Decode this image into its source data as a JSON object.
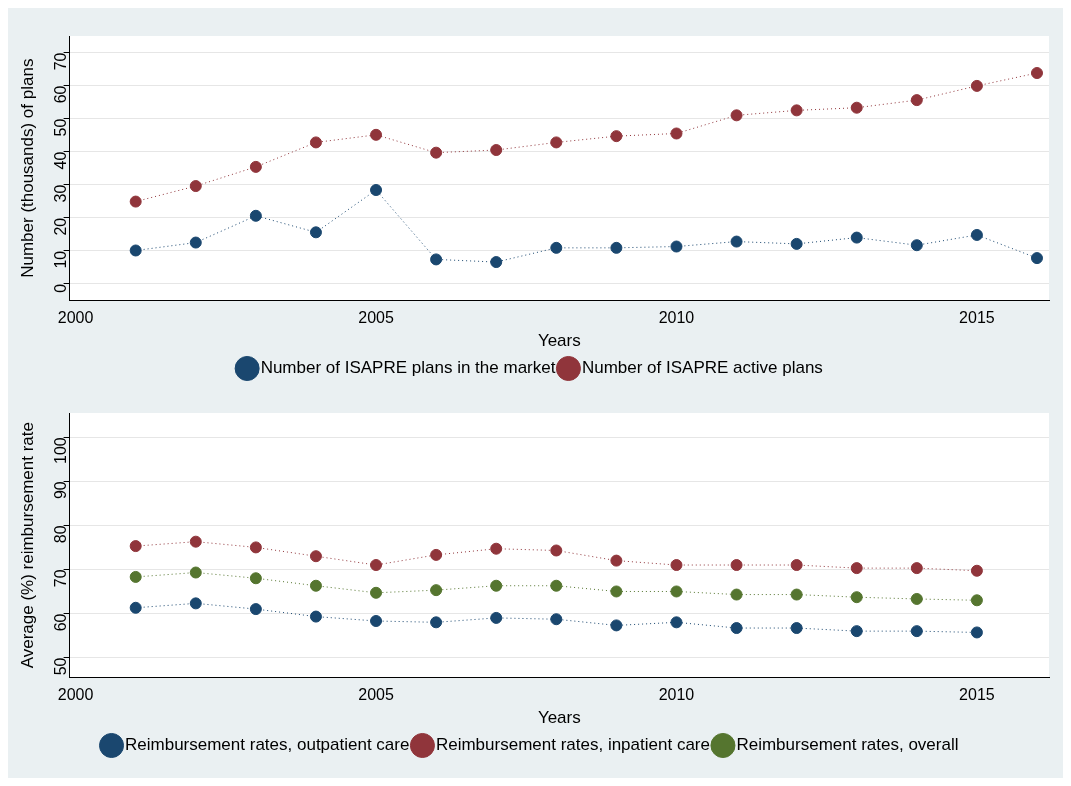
{
  "chart_data": [
    {
      "type": "line",
      "xlabel": "Years",
      "ylabel": "Number (thousands) of plans",
      "x": [
        2001,
        2002,
        2003,
        2004,
        2005,
        2006,
        2007,
        2008,
        2009,
        2010,
        2011,
        2012,
        2013,
        2014,
        2015,
        2016
      ],
      "series": [
        {
          "name": "Number of ISAPRE plans in the market",
          "color": "#1a476f",
          "values": [
            10.1,
            12.5,
            20.6,
            15.6,
            28.4,
            7.4,
            6.6,
            10.9,
            10.9,
            11.3,
            12.8,
            12.1,
            14.0,
            11.7,
            14.8,
            7.8
          ]
        },
        {
          "name": "Number of ISAPRE active plans",
          "color": "#90353b",
          "values": [
            24.9,
            29.6,
            35.4,
            42.8,
            45.1,
            39.7,
            40.5,
            42.8,
            44.7,
            45.5,
            51.0,
            52.5,
            53.3,
            55.6,
            59.9,
            63.8
          ]
        }
      ],
      "xlim": [
        1999.9,
        2016.2
      ],
      "xticks": [
        2000,
        2005,
        2010,
        2015
      ],
      "ylim": [
        -5,
        75
      ],
      "yticks": [
        0,
        10,
        20,
        30,
        40,
        50,
        60,
        70
      ],
      "grid": "y",
      "legend": "bottom",
      "marker": "circle",
      "line_style": "dotted"
    },
    {
      "type": "line",
      "xlabel": "Years",
      "ylabel": "Average (%) reimbursement rate",
      "x": [
        2001,
        2002,
        2003,
        2004,
        2005,
        2006,
        2007,
        2008,
        2009,
        2010,
        2011,
        2012,
        2013,
        2014,
        2015
      ],
      "series": [
        {
          "name": "Reimbursement rates, outpatient care",
          "color": "#1a476f",
          "values": [
            61.3,
            62.3,
            61.0,
            59.3,
            58.3,
            58.0,
            59.0,
            58.7,
            57.3,
            58.0,
            56.7,
            56.7,
            56.0,
            56.0,
            55.7
          ]
        },
        {
          "name": "Reimbursement rates, inpatient care",
          "color": "#90353b",
          "values": [
            75.3,
            76.3,
            75.0,
            73.0,
            71.0,
            73.3,
            74.7,
            74.3,
            72.0,
            71.0,
            71.0,
            71.0,
            70.3,
            70.3,
            69.7
          ]
        },
        {
          "name": "Reimbursement rates, overall",
          "color": "#55752f",
          "values": [
            68.3,
            69.3,
            68.0,
            66.3,
            64.7,
            65.3,
            66.3,
            66.3,
            65.0,
            65.0,
            64.3,
            64.3,
            63.7,
            63.3,
            63.0
          ]
        }
      ],
      "xlim": [
        1999.9,
        2016.2
      ],
      "xticks": [
        2000,
        2005,
        2010,
        2015
      ],
      "ylim": [
        45.5,
        105.5
      ],
      "yticks": [
        50,
        60,
        70,
        80,
        90,
        100
      ],
      "grid": "y",
      "legend": "bottom",
      "marker": "circle",
      "line_style": "dotted"
    }
  ]
}
